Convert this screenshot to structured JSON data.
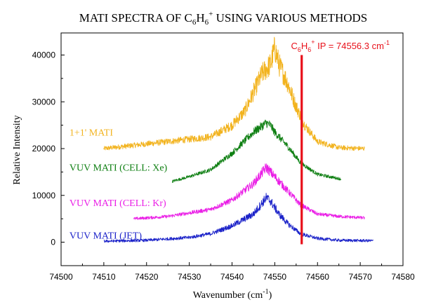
{
  "chart_data": {
    "type": "line",
    "title_parts": {
      "pre": "MATI SPECTRA OF C",
      "sub1": "6",
      "mid": "H",
      "sub2": "6",
      "sup": "+",
      "post": " USING VARIOUS METHODS"
    },
    "xlabel_parts": {
      "pre": "Wavenumber  (cm",
      "sup": "-1",
      "post": ")"
    },
    "ylabel": "Relative Intensity",
    "xlim": [
      74500,
      74580
    ],
    "ylim": [
      -5000,
      45000
    ],
    "xticks": [
      74500,
      74510,
      74520,
      74530,
      74540,
      74550,
      74560,
      74570,
      74580
    ],
    "yticks": [
      0,
      10000,
      20000,
      30000,
      40000
    ],
    "grid": false,
    "ip_marker": {
      "x": 74556.3,
      "y_range": [
        0,
        40000
      ],
      "color": "#e8101a",
      "label_parts": {
        "pre": "C",
        "sub1": "6",
        "mid": "H",
        "sub2": "6",
        "sup": "+",
        "post": " IP = 74556.3 cm",
        "sup2": "-1"
      }
    },
    "series": [
      {
        "name": "1+1' MATI",
        "color": "#f2b31e",
        "label_at": [
          74510,
          23500
        ],
        "x_range": [
          74510,
          74571
        ],
        "baseline": 20000,
        "peak_center": 74548.5,
        "peak_height": 17000,
        "noise": 3500,
        "x": [
          74510,
          74520,
          74530,
          74535,
          74540,
          74543,
          74545,
          74547,
          74549,
          74550,
          74551,
          74553,
          74555,
          74557,
          74560,
          74565,
          74571
        ],
        "y": [
          20000,
          21000,
          22000,
          22500,
          25000,
          28000,
          32000,
          36000,
          38000,
          41500,
          38000,
          34000,
          29000,
          25000,
          21500,
          20200,
          20000
        ]
      },
      {
        "name": "VUV MATI (CELL:  Xe)",
        "color": "#0e7f12",
        "label_at": [
          74510,
          16000
        ],
        "x_range": [
          74526,
          74565.5
        ],
        "baseline": 13000,
        "peak_center": 74548.5,
        "peak_height": 11500,
        "noise": 1200,
        "x": [
          74526,
          74530,
          74535,
          74540,
          74545,
          74548,
          74549,
          74550,
          74553,
          74556,
          74560,
          74565.5
        ],
        "y": [
          13000,
          14000,
          15500,
          19000,
          23500,
          25500,
          25000,
          23500,
          20500,
          17000,
          14500,
          13500
        ]
      },
      {
        "name": "VUV MATI (CELL:  Kr)",
        "color": "#ea1fe6",
        "label_at": [
          74510,
          8500
        ],
        "x_range": [
          74517,
          74571
        ],
        "baseline": 5000,
        "peak_center": 74548.5,
        "peak_height": 11000,
        "noise": 1500,
        "x": [
          74517,
          74525,
          74535,
          74540,
          74545,
          74548,
          74549,
          74551,
          74553,
          74556,
          74560,
          74565,
          74571
        ],
        "y": [
          5000,
          5500,
          7000,
          9000,
          12500,
          16000,
          15000,
          13000,
          11000,
          8000,
          6000,
          5500,
          5200
        ]
      },
      {
        "name": "VUV MATI (JET)",
        "color": "#1c23c9",
        "label_at": [
          74510,
          1500
        ],
        "x_range": [
          74510,
          74573
        ],
        "baseline": 200,
        "peak_center": 74548.5,
        "peak_height": 8500,
        "noise": 1300,
        "x": [
          74510,
          74520,
          74530,
          74535,
          74540,
          74545,
          74548,
          74549,
          74551,
          74553,
          74556,
          74560,
          74565,
          74573
        ],
        "y": [
          200,
          400,
          1000,
          1800,
          3500,
          6000,
          9500,
          8800,
          6000,
          4000,
          1800,
          800,
          400,
          300
        ]
      }
    ]
  }
}
